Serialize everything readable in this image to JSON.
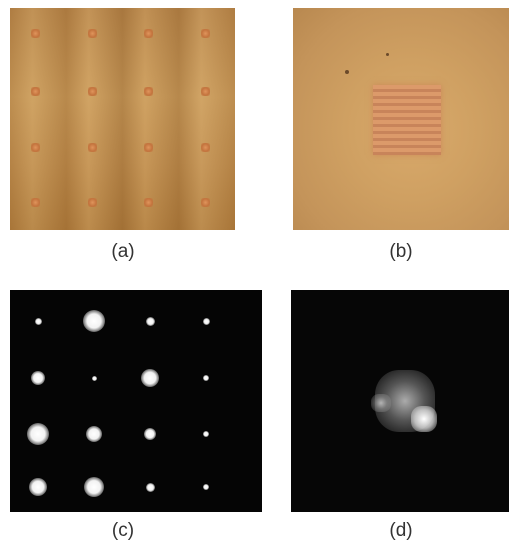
{
  "captions": {
    "a": "(a)",
    "b": "(b)",
    "c": "(c)",
    "d": "(d)"
  }
}
